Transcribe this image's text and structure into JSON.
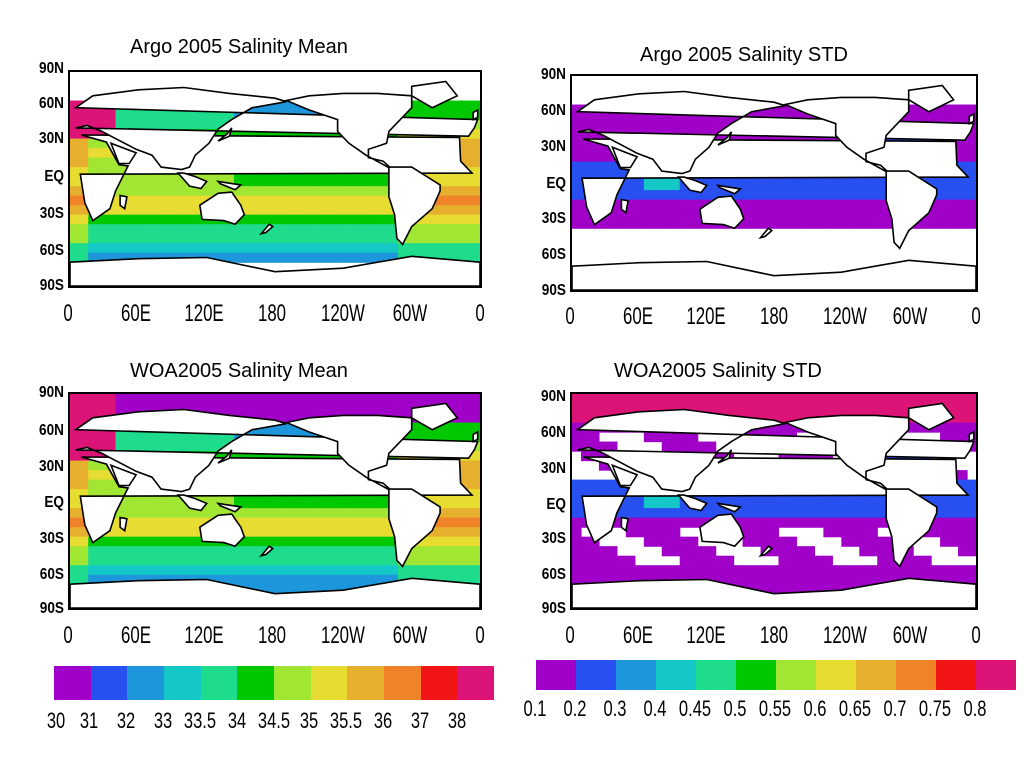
{
  "panels": [
    {
      "id": "argo-mean",
      "title": "Argo 2005 Salinity Mean",
      "kind": "mean",
      "source": "argo"
    },
    {
      "id": "argo-std",
      "title": "Argo 2005 Salinity STD",
      "kind": "std",
      "source": "argo"
    },
    {
      "id": "woa-mean",
      "title": "WOA2005 Salinity Mean",
      "kind": "mean",
      "source": "woa"
    },
    {
      "id": "woa-std",
      "title": "WOA2005 Salinity STD",
      "kind": "std",
      "source": "woa"
    }
  ],
  "lat_labels": [
    "90N",
    "60N",
    "30N",
    "EQ",
    "30S",
    "60S",
    "90S"
  ],
  "lon_labels": [
    "0",
    "60E",
    "120E",
    "180",
    "120W",
    "60W",
    "0"
  ],
  "colors": [
    "#a000c8",
    "#2850f0",
    "#1e96dc",
    "#14c8c8",
    "#1edc8c",
    "#00c800",
    "#a0e632",
    "#e6dc32",
    "#e6af2d",
    "#f08228",
    "#f01414",
    "#dc1478"
  ],
  "mean_colorbar": {
    "labels": [
      "30",
      "31",
      "32",
      "33",
      "33.5",
      "34",
      "34.5",
      "35",
      "35.5",
      "36",
      "37",
      "38"
    ]
  },
  "std_colorbar": {
    "labels": [
      "0.1",
      "0.2",
      "0.3",
      "0.4",
      "0.45",
      "0.5",
      "0.55",
      "0.6",
      "0.65",
      "0.7",
      "0.75",
      "0.8"
    ]
  }
}
